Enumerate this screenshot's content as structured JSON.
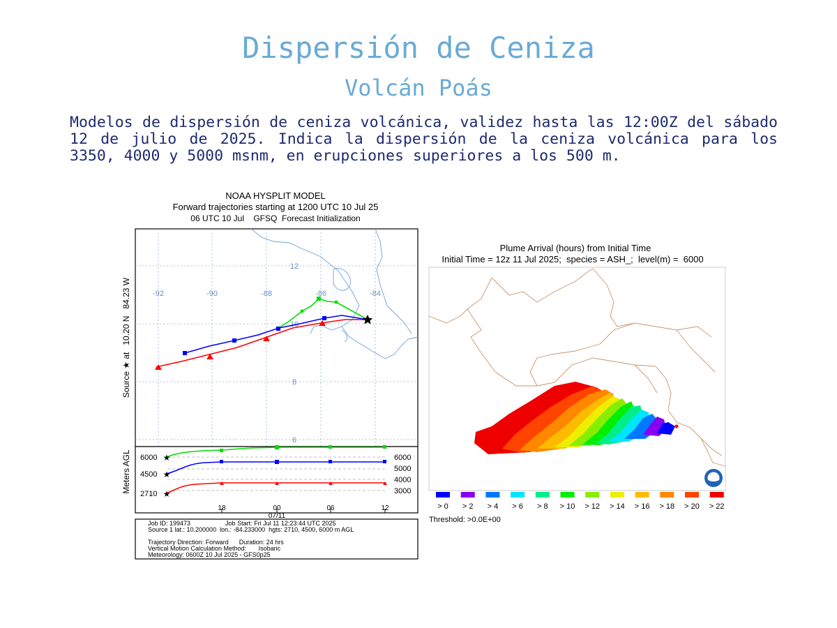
{
  "page": {
    "title": "Dispersión de Ceniza",
    "subtitle": "Volcán Poás",
    "description": "Modelos de dispersión de ceniza volcánica, validez hasta las 12:00Z del sábado 12 de julio de 2025. Indica la dispersión de la ceniza volcánica para los 3350, 4000 y 5000 msnm, en erupciones superiores a los 500 m."
  },
  "hysplit": {
    "title_lines": [
      "NOAA HYSPLIT MODEL",
      "Forward trajectories starting at 1200 UTC 10 Jul 25",
      "06 UTC 10 Jul    GFSQ  Forecast Initialization"
    ],
    "y_axis_label": "Source ★ at   10.20 N   84.23 W",
    "lon_labels": [
      "-92",
      "-90",
      "-88",
      "-86",
      "-84"
    ],
    "lat_labels": [
      "12",
      "10",
      "8",
      "6"
    ],
    "vertical_axis_label": "Meters AGL",
    "left_heights": [
      "6000",
      "4500",
      "2710"
    ],
    "right_heights": [
      "6000",
      "5000",
      "4000",
      "3000"
    ],
    "time_labels": [
      "18",
      "00",
      "06",
      "12"
    ],
    "date_label": "07/11",
    "info_lines": [
      "Job ID: 199473                    Job Start: Fri Jul 11 12:23:44 UTC 2025",
      "Source 1 lat.: 10.200000  lon.: -84.233000  hgts: 2710, 4500, 6000 m AGL",
      "",
      "Trajectory Direction: Forward      Duration: 24 hrs",
      "Vertical Motion Calculation Method:       Isobaric",
      "Meteorology: 0600Z 10 Jul 2025 - GFS0p25"
    ],
    "trajectories": [
      {
        "color": "#ff0000",
        "height_m": 2710,
        "marker": "triangle"
      },
      {
        "color": "#0000ff",
        "height_m": 4500,
        "marker": "square"
      },
      {
        "color": "#00dd00",
        "height_m": 6000,
        "marker": "circle"
      }
    ]
  },
  "plume": {
    "title_lines": [
      "Plume Arrival (hours) from Initial Time",
      "Initial Time = 12z 11 Jul 2025;  species = ASH_;  level(m) =  6000"
    ],
    "legend": [
      {
        "label": "> 0",
        "color": "#0000ff"
      },
      {
        "label": "> 2",
        "color": "#8800ee"
      },
      {
        "label": "> 4",
        "color": "#0077ff"
      },
      {
        "label": "> 6",
        "color": "#00e5ff"
      },
      {
        "label": "> 8",
        "color": "#00ee88"
      },
      {
        "label": "> 10",
        "color": "#00ee00"
      },
      {
        "label": "> 12",
        "color": "#88ee00"
      },
      {
        "label": "> 14",
        "color": "#eeee00"
      },
      {
        "label": "> 16",
        "color": "#ffbb00"
      },
      {
        "label": "> 18",
        "color": "#ff8800"
      },
      {
        "label": "> 20",
        "color": "#ff4400"
      },
      {
        "label": "> 22",
        "color": "#ee0000"
      }
    ],
    "threshold": "Threshold: >0.0E+00"
  }
}
